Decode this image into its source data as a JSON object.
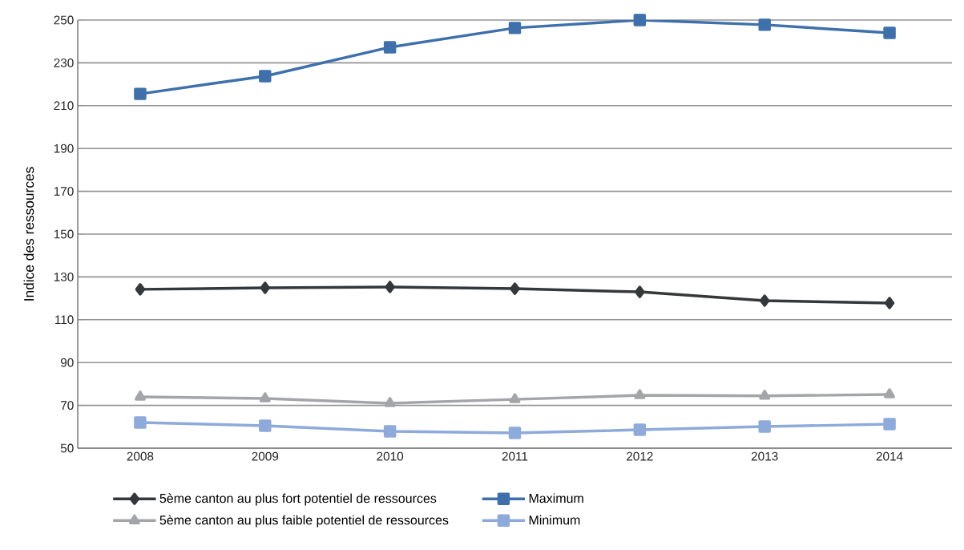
{
  "chart_data": {
    "type": "line",
    "ylabel": "Indice des ressources",
    "categories": [
      "2008",
      "2009",
      "2010",
      "2011",
      "2012",
      "2013",
      "2014"
    ],
    "series": [
      {
        "name": "5ème canton au plus fort potentiel de ressources",
        "color": "#35383b",
        "marker": "diamond",
        "values": [
          124.2,
          124.9,
          125.3,
          124.5,
          123,
          118.9,
          117.8
        ]
      },
      {
        "name": "Maximum",
        "color": "#3e70ac",
        "marker": "square",
        "values": [
          215.5,
          223.8,
          237.3,
          246.3,
          250,
          247.8,
          244
        ]
      },
      {
        "name": "5ème canton au plus faible potentiel de ressources",
        "color": "#a3a5a8",
        "marker": "triangle",
        "values": [
          74,
          73.2,
          71,
          72.8,
          74.7,
          74.4,
          75.1
        ]
      },
      {
        "name": "Minimum",
        "color": "#8eaadb",
        "marker": "square",
        "values": [
          62,
          60.5,
          57.9,
          57.1,
          58.6,
          60.1,
          61.2
        ]
      }
    ],
    "ylim": [
      50,
      250
    ],
    "yticks": [
      50,
      70,
      90,
      110,
      130,
      150,
      170,
      190,
      210,
      230,
      250
    ],
    "grid": "y",
    "legend": "bottom",
    "line_style": "solid"
  }
}
